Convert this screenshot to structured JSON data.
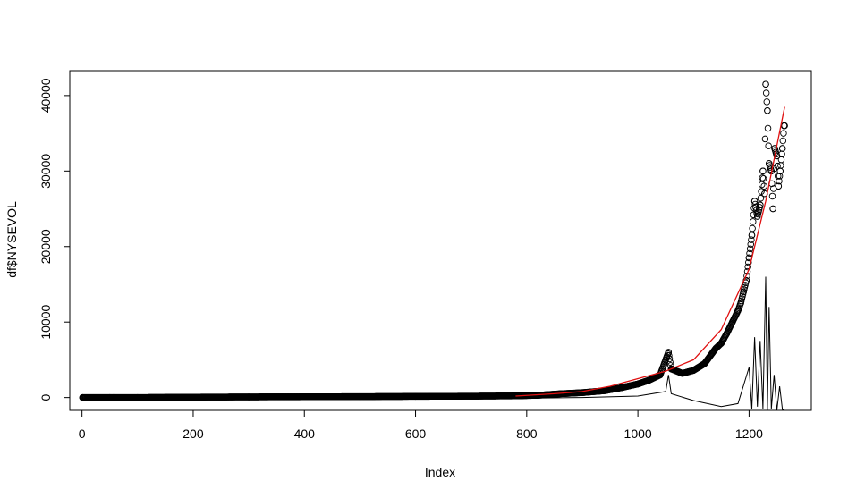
{
  "chart_data": {
    "type": "scatter",
    "title": "",
    "xlabel": "Index",
    "ylabel": "df$NYSEVOL",
    "xlim": [
      -22,
      1312
    ],
    "ylim": [
      -1700,
      43300
    ],
    "xticks": [
      0,
      200,
      400,
      600,
      800,
      1000,
      1200
    ],
    "yticks": [
      0,
      10000,
      20000,
      30000,
      40000
    ],
    "grid": false,
    "legend": "none",
    "n_points": 1264,
    "colors": {
      "points": "#000000",
      "fit": "#e01010",
      "residual": "#000000"
    },
    "series": [
      {
        "type": "points",
        "description_points": "open circles",
        "x": [
          1,
          50,
          100,
          200,
          300,
          400,
          500,
          600,
          700,
          780,
          820,
          860,
          900,
          940,
          970,
          1000,
          1020,
          1040,
          1055,
          1060,
          1080,
          1100,
          1120,
          1140,
          1150,
          1160,
          1170,
          1180,
          1185,
          1190,
          1195,
          1200,
          1205,
          1210,
          1215,
          1220,
          1225,
          1228,
          1230,
          1233,
          1236,
          1240,
          1243,
          1246,
          1250,
          1253,
          1256,
          1260,
          1263
        ],
        "y": [
          0,
          0,
          0,
          50,
          80,
          100,
          120,
          150,
          180,
          220,
          300,
          500,
          650,
          900,
          1300,
          1800,
          2300,
          3000,
          6000,
          3800,
          3200,
          3600,
          4500,
          6500,
          7200,
          8500,
          10000,
          11500,
          12500,
          14000,
          15500,
          18500,
          21500,
          26000,
          24000,
          25500,
          30000,
          27000,
          41500,
          38000,
          31000,
          30000,
          25000,
          33000,
          32000,
          28000,
          30000,
          33000,
          36000
        ]
      },
      {
        "type": "line",
        "description_points": "red exponential fit",
        "x": [
          780,
          850,
          900,
          950,
          1000,
          1050,
          1100,
          1150,
          1200,
          1230,
          1264
        ],
        "y": [
          200,
          500,
          800,
          1500,
          2500,
          3500,
          5000,
          9000,
          17000,
          26000,
          38500
        ]
      },
      {
        "type": "line",
        "description_points": "black residual line",
        "x": [
          780,
          900,
          1000,
          1050,
          1055,
          1060,
          1100,
          1150,
          1180,
          1200,
          1205,
          1210,
          1215,
          1220,
          1225,
          1230,
          1233,
          1236,
          1240,
          1245,
          1250,
          1255,
          1260,
          1264
        ],
        "y": [
          -100,
          0,
          200,
          800,
          3000,
          500,
          -400,
          -1200,
          -800,
          4000,
          -1500,
          8000,
          -1200,
          7500,
          -1500,
          16000,
          -1700,
          12000,
          -1500,
          3000,
          -1700,
          1500,
          -1600,
          -1700
        ]
      }
    ]
  }
}
